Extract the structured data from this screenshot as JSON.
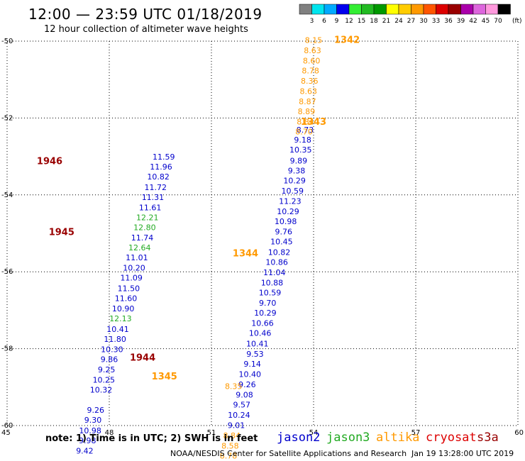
{
  "header": {
    "title": "12:00 — 23:59 UTC 01/18/2019",
    "subtitle": "12 hour collection of altimeter wave heights"
  },
  "footer": {
    "note": "note: 1) Time is in UTC; 2) SWH is in feet",
    "credit": "NOAA/NESDIS Center for Satellite Applications and Research",
    "timestamp": "Jan 19 13:28:00 UTC 2019"
  },
  "missions": [
    {
      "name": "jason2",
      "color": "#0000cc"
    },
    {
      "name": "jason3",
      "color": "#22aa22"
    },
    {
      "name": "altika",
      "color": "#ff9900"
    },
    {
      "name": "cryosat",
      "color": "#dd0000"
    },
    {
      "name": "s3a",
      "color": "#990000"
    }
  ],
  "chart_data": {
    "type": "scatter",
    "title": "12:00 — 23:59 UTC 01/18/2019",
    "subtitle": "12 hour collection of altimeter wave heights",
    "xlabel": "",
    "ylabel": "",
    "xlim": [
      45,
      60
    ],
    "ylim": [
      -60,
      -50
    ],
    "x_ticks": [
      45,
      48,
      51,
      54,
      57,
      60
    ],
    "y_ticks": [
      -50,
      -52,
      -54,
      -56,
      -58,
      -60
    ],
    "grid": true,
    "colorbar": {
      "unit": "(ft)",
      "labels": [
        "3",
        "6",
        "9",
        "12",
        "15",
        "18",
        "21",
        "24",
        "27",
        "30",
        "33",
        "36",
        "39",
        "42",
        "45",
        "70"
      ],
      "colors": [
        "#808080",
        "#00e5ee",
        "#00aaff",
        "#0000ee",
        "#33ee33",
        "#22bb22",
        "#009900",
        "#ffff00",
        "#ffcc00",
        "#ff9900",
        "#ff5500",
        "#dd0000",
        "#990000",
        "#aa00aa",
        "#dd66dd",
        "#ff99dd",
        "#000000"
      ]
    },
    "time_labels": [
      {
        "text": "1342",
        "lon": 54.98,
        "lat": -50.05,
        "color": "#ff9900"
      },
      {
        "text": "1343",
        "lon": 54.0,
        "lat": -52.18,
        "color": "#ff9900"
      },
      {
        "text": "1344",
        "lon": 52.0,
        "lat": -55.6,
        "color": "#ff9900"
      },
      {
        "text": "1345",
        "lon": 49.62,
        "lat": -58.8,
        "color": "#ff9900"
      },
      {
        "text": "1946",
        "lon": 46.25,
        "lat": -53.2,
        "color": "#990000"
      },
      {
        "text": "1945",
        "lon": 46.6,
        "lat": -55.05,
        "color": "#990000"
      },
      {
        "text": "1944",
        "lon": 48.98,
        "lat": -58.31,
        "color": "#990000"
      }
    ],
    "series": [
      {
        "name": "jason2",
        "color": "#0000cc",
        "points": [
          {
            "lon": 53.75,
            "lat": -52.38,
            "swh": "8.73"
          },
          {
            "lon": 53.68,
            "lat": -52.64,
            "swh": "9.18"
          },
          {
            "lon": 53.62,
            "lat": -52.9,
            "swh": "10.35"
          },
          {
            "lon": 53.56,
            "lat": -53.18,
            "swh": "9.89"
          },
          {
            "lon": 53.5,
            "lat": -53.44,
            "swh": "9.38"
          },
          {
            "lon": 53.44,
            "lat": -53.7,
            "swh": "10.29"
          },
          {
            "lon": 53.38,
            "lat": -53.97,
            "swh": "10.59"
          },
          {
            "lon": 53.31,
            "lat": -54.23,
            "swh": "11.23"
          },
          {
            "lon": 53.25,
            "lat": -54.5,
            "swh": "10.29"
          },
          {
            "lon": 53.18,
            "lat": -54.76,
            "swh": "10.98"
          },
          {
            "lon": 53.12,
            "lat": -55.03,
            "swh": "9.76"
          },
          {
            "lon": 53.06,
            "lat": -55.29,
            "swh": "10.45"
          },
          {
            "lon": 52.99,
            "lat": -55.56,
            "swh": "10.82"
          },
          {
            "lon": 52.92,
            "lat": -55.82,
            "swh": "10.86"
          },
          {
            "lon": 52.85,
            "lat": -56.09,
            "swh": "11.04"
          },
          {
            "lon": 52.78,
            "lat": -56.36,
            "swh": "10.88"
          },
          {
            "lon": 52.72,
            "lat": -56.61,
            "swh": "10.59"
          },
          {
            "lon": 52.65,
            "lat": -56.88,
            "swh": "9.70"
          },
          {
            "lon": 52.58,
            "lat": -57.14,
            "swh": "10.29"
          },
          {
            "lon": 52.5,
            "lat": -57.41,
            "swh": "10.66"
          },
          {
            "lon": 52.43,
            "lat": -57.67,
            "swh": "10.46"
          },
          {
            "lon": 52.35,
            "lat": -57.94,
            "swh": "10.41"
          },
          {
            "lon": 52.28,
            "lat": -58.21,
            "swh": "9.53"
          },
          {
            "lon": 52.2,
            "lat": -58.47,
            "swh": "9.14"
          },
          {
            "lon": 52.13,
            "lat": -58.74,
            "swh": "10.40"
          },
          {
            "lon": 52.05,
            "lat": -59.0,
            "swh": "9.26"
          },
          {
            "lon": 51.97,
            "lat": -59.27,
            "swh": "9.08"
          },
          {
            "lon": 51.89,
            "lat": -59.53,
            "swh": "9.57"
          },
          {
            "lon": 51.81,
            "lat": -59.8,
            "swh": "10.24"
          },
          {
            "lon": 51.73,
            "lat": -60.06,
            "swh": "9.01"
          },
          {
            "lon": 49.6,
            "lat": -53.08,
            "swh": "11.59"
          },
          {
            "lon": 49.52,
            "lat": -53.34,
            "swh": "11.96"
          },
          {
            "lon": 49.44,
            "lat": -53.6,
            "swh": "10.82"
          },
          {
            "lon": 49.36,
            "lat": -53.87,
            "swh": "11.72"
          },
          {
            "lon": 49.28,
            "lat": -54.13,
            "swh": "11.31"
          },
          {
            "lon": 49.2,
            "lat": -54.4,
            "swh": "11.61"
          },
          {
            "lon": 48.97,
            "lat": -55.18,
            "swh": "11.74"
          },
          {
            "lon": 48.81,
            "lat": -55.7,
            "swh": "11.01"
          },
          {
            "lon": 48.73,
            "lat": -55.97,
            "swh": "10.20"
          },
          {
            "lon": 48.65,
            "lat": -56.23,
            "swh": "11.09"
          },
          {
            "lon": 48.57,
            "lat": -56.5,
            "swh": "11.50"
          },
          {
            "lon": 48.49,
            "lat": -56.76,
            "swh": "11.60"
          },
          {
            "lon": 48.41,
            "lat": -57.03,
            "swh": "10.90"
          },
          {
            "lon": 48.25,
            "lat": -57.56,
            "swh": "10.41"
          },
          {
            "lon": 48.17,
            "lat": -57.82,
            "swh": "11.80"
          },
          {
            "lon": 48.08,
            "lat": -58.09,
            "swh": "10.30"
          },
          {
            "lon": 48.0,
            "lat": -58.35,
            "swh": "9.86"
          },
          {
            "lon": 47.92,
            "lat": -58.62,
            "swh": "9.25"
          },
          {
            "lon": 47.84,
            "lat": -58.88,
            "swh": "10.25"
          },
          {
            "lon": 47.76,
            "lat": -59.14,
            "swh": "10.32"
          },
          {
            "lon": 47.6,
            "lat": -59.67,
            "swh": "9.26"
          },
          {
            "lon": 47.52,
            "lat": -59.93,
            "swh": "9.30"
          },
          {
            "lon": 47.44,
            "lat": -60.2,
            "swh": "10.98"
          },
          {
            "lon": 47.36,
            "lat": -60.46,
            "swh": "9.98"
          },
          {
            "lon": 47.28,
            "lat": -60.73,
            "swh": "9.42"
          }
        ]
      },
      {
        "name": "jason3",
        "color": "#22aa22",
        "points": [
          {
            "lon": 49.12,
            "lat": -54.66,
            "swh": "12.21"
          },
          {
            "lon": 49.04,
            "lat": -54.92,
            "swh": "12.80"
          },
          {
            "lon": 48.89,
            "lat": -55.44,
            "swh": "12.64"
          },
          {
            "lon": 48.33,
            "lat": -57.29,
            "swh": "12.13"
          }
        ]
      },
      {
        "name": "altika",
        "color": "#ff9900",
        "points": [
          {
            "lon": 54.0,
            "lat": -50.05,
            "swh": "8.15"
          },
          {
            "lon": 53.97,
            "lat": -50.31,
            "swh": "8.63"
          },
          {
            "lon": 53.94,
            "lat": -50.58,
            "swh": "8.60"
          },
          {
            "lon": 53.91,
            "lat": -50.84,
            "swh": "8.78"
          },
          {
            "lon": 53.88,
            "lat": -51.11,
            "swh": "8.36"
          },
          {
            "lon": 53.85,
            "lat": -51.37,
            "swh": "8.63"
          },
          {
            "lon": 53.82,
            "lat": -51.64,
            "swh": "8.87"
          },
          {
            "lon": 53.79,
            "lat": -51.9,
            "swh": "8.89"
          },
          {
            "lon": 53.76,
            "lat": -52.17,
            "swh": "8.84"
          },
          {
            "lon": 53.72,
            "lat": -52.43,
            "swh": "8.70"
          },
          {
            "lon": 51.65,
            "lat": -59.05,
            "swh": "8.35"
          },
          {
            "lon": 51.6,
            "lat": -60.33,
            "swh": "8.84"
          },
          {
            "lon": 51.55,
            "lat": -60.6,
            "swh": "8.58"
          },
          {
            "lon": 51.5,
            "lat": -60.86,
            "swh": "8.78"
          }
        ]
      }
    ]
  }
}
